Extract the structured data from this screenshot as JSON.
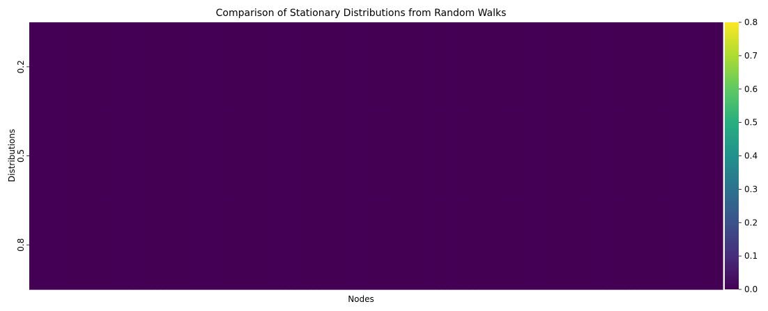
{
  "chart_data": {
    "type": "heatmap",
    "title": "Comparison of Stationary Distributions from Random Walks",
    "xlabel": "Nodes",
    "ylabel": "Distributions",
    "rows": [
      "0.2",
      "0.5",
      "0.8"
    ],
    "n_columns": 120,
    "values": [
      {
        "row": "0.2",
        "values": "near 0 across all nodes"
      },
      {
        "row": "0.5",
        "values": "near 0 across all nodes"
      },
      {
        "row": "0.8",
        "values": "near 0 across all nodes"
      }
    ],
    "colorbar": {
      "colormap": "viridis",
      "range": [
        0.0,
        0.8
      ],
      "ticks": [
        "0.0",
        "0.1",
        "0.2",
        "0.3",
        "0.4",
        "0.5",
        "0.6",
        "0.7",
        "0.8"
      ]
    },
    "cell_color": "#440154"
  }
}
